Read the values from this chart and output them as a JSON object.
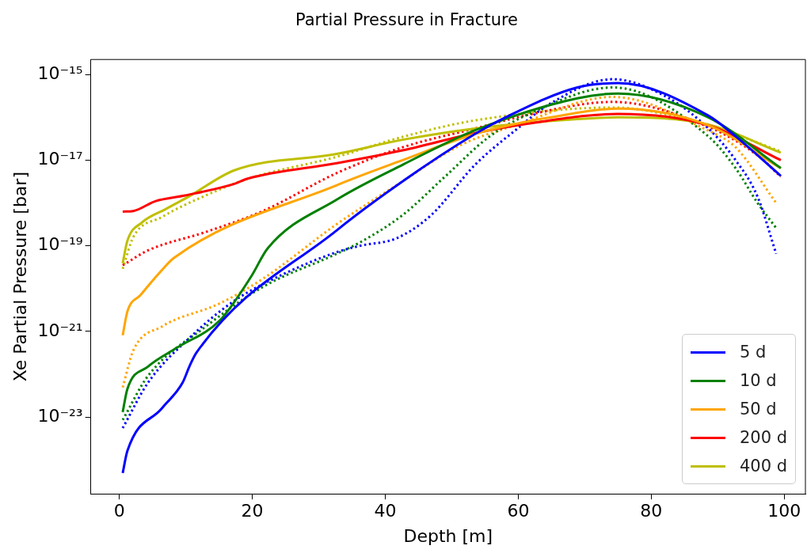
{
  "chart_data": {
    "type": "line",
    "title": "Partial Pressure in Fracture",
    "xlabel": "Depth [m]",
    "ylabel": "Xe Partial Pressure [bar]",
    "log": "y",
    "grid": false,
    "legend": "bottom right",
    "marker": "none",
    "xlim": [
      -4.3,
      103.2
    ],
    "xticks": [
      0,
      20,
      40,
      60,
      80,
      100
    ],
    "ylim": [
      1.6e-25,
      2.25e-15
    ],
    "yticks": [
      {
        "value": 1e-23,
        "label": "10⁻²³"
      },
      {
        "value": 1e-21,
        "label": "10⁻²¹"
      },
      {
        "value": 1e-19,
        "label": "10⁻¹⁹"
      },
      {
        "value": 1e-17,
        "label": "10⁻¹⁷"
      },
      {
        "value": 1e-15,
        "label": "10⁻¹⁵"
      }
    ],
    "series": [
      {
        "name": "5 d",
        "color": "#0000ff",
        "line_style": "solid",
        "x": [
          0.5,
          1.2,
          6.4,
          9.5,
          10.6,
          11.6,
          32.7,
          42.6,
          53.5,
          57.8,
          68.9,
          75,
          88.6,
          92.7,
          99.5
        ],
        "values": [
          4.9e-25,
          1.6e-24,
          1.6e-23,
          6.3e-23,
          1.6e-22,
          3.2e-22,
          2.3e-19,
          3.2e-18,
          4.1e-17,
          9.5e-17,
          5e-16,
          6.3e-16,
          1.1e-16,
          3.6e-17,
          4.3e-18
        ]
      },
      {
        "name": "10 d",
        "color": "#008000",
        "line_style": "solid",
        "x": [
          0.5,
          1.2,
          4.3,
          8.6,
          15.1,
          19.9,
          22.3,
          32.7,
          42.6,
          53.5,
          68.9,
          75,
          88.6,
          99.5
        ],
        "values": [
          1.3e-23,
          4.5e-23,
          1.5e-22,
          4.1e-22,
          1.8e-21,
          2e-20,
          8.7e-20,
          1.2e-18,
          7.8e-18,
          5e-17,
          2.8e-16,
          3.6e-16,
          1e-16,
          6.5e-18
        ]
      },
      {
        "name": "50 d",
        "color": "#ffa500",
        "line_style": "solid",
        "x": [
          0.5,
          1.2,
          3.2,
          6.3,
          8.2,
          32.7,
          42.6,
          53.5,
          62.1,
          64,
          75,
          88.6,
          99.5
        ],
        "values": [
          8.1e-22,
          2.9e-21,
          7.1e-21,
          2.6e-20,
          5.2e-20,
          2.6e-18,
          1e-17,
          4.1e-17,
          8.5e-17,
          9.5e-17,
          1.6e-16,
          6.5e-17,
          6.5e-18
        ]
      },
      {
        "name": "200 d",
        "color": "#ff0000",
        "line_style": "solid",
        "x": [
          0.5,
          2.1,
          5.4,
          9.9,
          17.3,
          19.3,
          32.7,
          42.6,
          53.5,
          62.1,
          75,
          88.6,
          99.5
        ],
        "values": [
          6.3e-19,
          6.5e-19,
          1.1e-18,
          1.5e-18,
          2.8e-18,
          3.7e-18,
          8.5e-18,
          1.7e-17,
          4.3e-17,
          7.4e-17,
          1.2e-16,
          6.5e-17,
          1e-17
        ]
      },
      {
        "name": "400 d",
        "color": "#bfbf00",
        "line_style": "solid",
        "x": [
          0.5,
          1.2,
          3.4,
          6.9,
          10.4,
          17.3,
          32.7,
          42.6,
          53.5,
          68.9,
          75,
          88.6,
          99.5
        ],
        "values": [
          3.9e-20,
          1.3e-19,
          3.5e-19,
          7.1e-19,
          1.4e-18,
          5.8e-18,
          1.4e-17,
          3e-17,
          5.5e-17,
          9.1e-17,
          1e-16,
          6.8e-17,
          1.5e-17
        ]
      },
      {
        "color": "#0000ff",
        "line_style": "dotted",
        "x": [
          0.5,
          4.3,
          10.7,
          17.3,
          25,
          32.7,
          36.2,
          41.7,
          46.9,
          53.5,
          59.9,
          64.6,
          74.2,
          82.5,
          88.6,
          92.7,
          96,
          98.8
        ],
        "values": [
          5.5e-24,
          6.3e-23,
          7.4e-22,
          5.2e-21,
          2.3e-20,
          7.1e-20,
          1e-19,
          1.5e-19,
          5.2e-19,
          7.8e-18,
          5.5e-17,
          2e-16,
          7.8e-16,
          2.9e-16,
          5.5e-17,
          1e-17,
          1.4e-18,
          6.5e-20
        ]
      },
      {
        "color": "#008000",
        "line_style": "dotted",
        "x": [
          0.5,
          4.3,
          13,
          21.6,
          32.7,
          36.2,
          42.6,
          49.1,
          55.6,
          62.1,
          74.2,
          88.6,
          92.7,
          96,
          98.8
        ],
        "values": [
          8.5e-24,
          9.1e-23,
          1.3e-21,
          1.1e-20,
          6.5e-20,
          1.2e-19,
          5.2e-19,
          4.3e-18,
          3.5e-17,
          1.3e-16,
          5e-16,
          3.6e-17,
          6.5e-18,
          1e-18,
          2.6e-19
        ]
      },
      {
        "color": "#ffa500",
        "line_style": "dotted",
        "x": [
          0.5,
          2.1,
          6.4,
          15.1,
          21.6,
          32.7,
          42.6,
          51.2,
          59.9,
          74.2,
          88.6,
          92.7,
          98.8
        ],
        "values": [
          4.9e-23,
          3.6e-22,
          1.3e-21,
          4.5e-21,
          1.7e-20,
          3.2e-19,
          3.2e-18,
          2.2e-17,
          6.8e-17,
          3e-16,
          4.9e-17,
          2e-17,
          1e-18
        ]
      },
      {
        "color": "#ff0000",
        "line_style": "dotted",
        "x": [
          0.5,
          4.3,
          13,
          21.6,
          32.7,
          42.6,
          53.5,
          62.1,
          74.2,
          88.6,
          96,
          99.5
        ],
        "values": [
          3.5e-20,
          7.8e-20,
          2.1e-19,
          6.5e-19,
          5e-18,
          2e-17,
          5.5e-17,
          1.2e-16,
          2.3e-16,
          6e-17,
          1.3e-17,
          4.1e-18
        ]
      },
      {
        "color": "#bfbf00",
        "line_style": "dotted",
        "x": [
          0.5,
          2.1,
          6.4,
          13,
          19.4,
          32.7,
          42.6,
          53.5,
          74.2,
          88.6,
          99.5
        ],
        "values": [
          2.9e-20,
          1.6e-19,
          4.7e-19,
          1.5e-18,
          3.7e-18,
          1.2e-17,
          3.5e-17,
          8.5e-17,
          1.7e-16,
          6.5e-17,
          1.6e-17
        ]
      }
    ]
  }
}
